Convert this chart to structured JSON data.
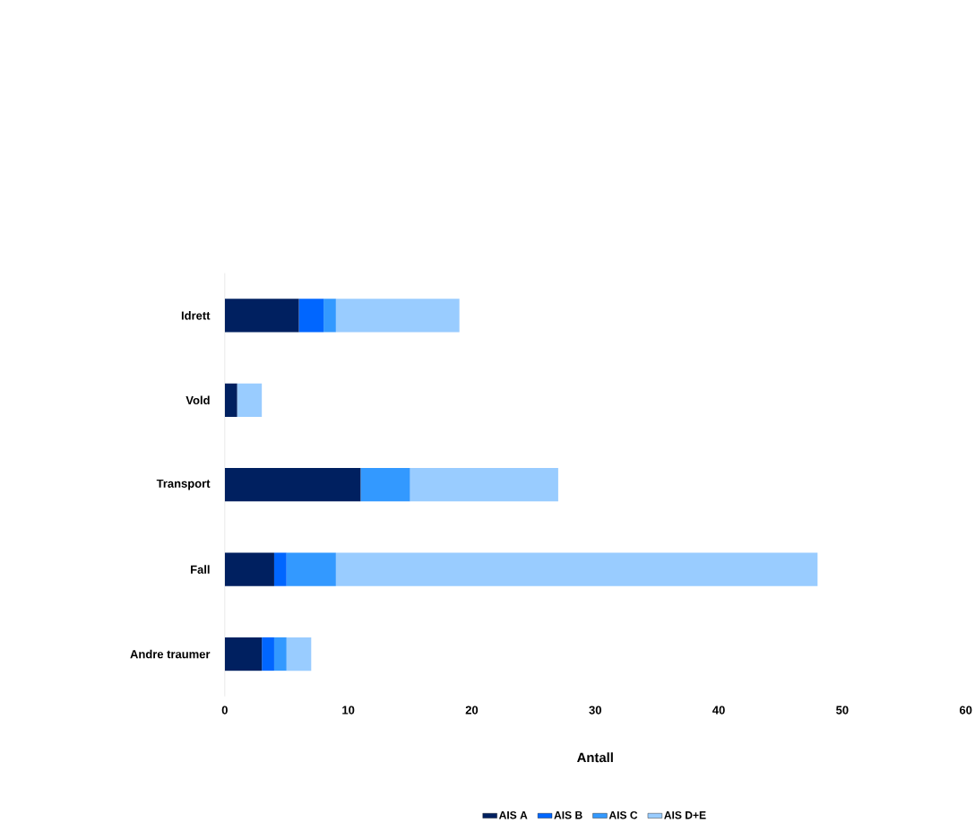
{
  "chart_data": {
    "type": "bar",
    "orientation": "horizontal",
    "stacked": true,
    "xlabel": "Antall",
    "categories": [
      "Idrett",
      "Vold",
      "Transport",
      "Fall",
      "Andre traumer"
    ],
    "series": [
      {
        "name": "AIS A",
        "color": "#002060",
        "values": [
          6,
          1,
          11,
          4,
          3
        ]
      },
      {
        "name": "AIS B",
        "color": "#0066ff",
        "values": [
          2,
          0,
          0,
          1,
          1
        ]
      },
      {
        "name": "AIS C",
        "color": "#3399ff",
        "values": [
          1,
          0,
          4,
          4,
          1
        ]
      },
      {
        "name": "AIS D+E",
        "color": "#99ccff",
        "values": [
          10,
          2,
          12,
          39,
          2
        ]
      }
    ],
    "xlim": [
      0,
      60
    ],
    "xticks": [
      0,
      10,
      20,
      30,
      40,
      50,
      60
    ],
    "legend": "bottom",
    "grid": false
  }
}
